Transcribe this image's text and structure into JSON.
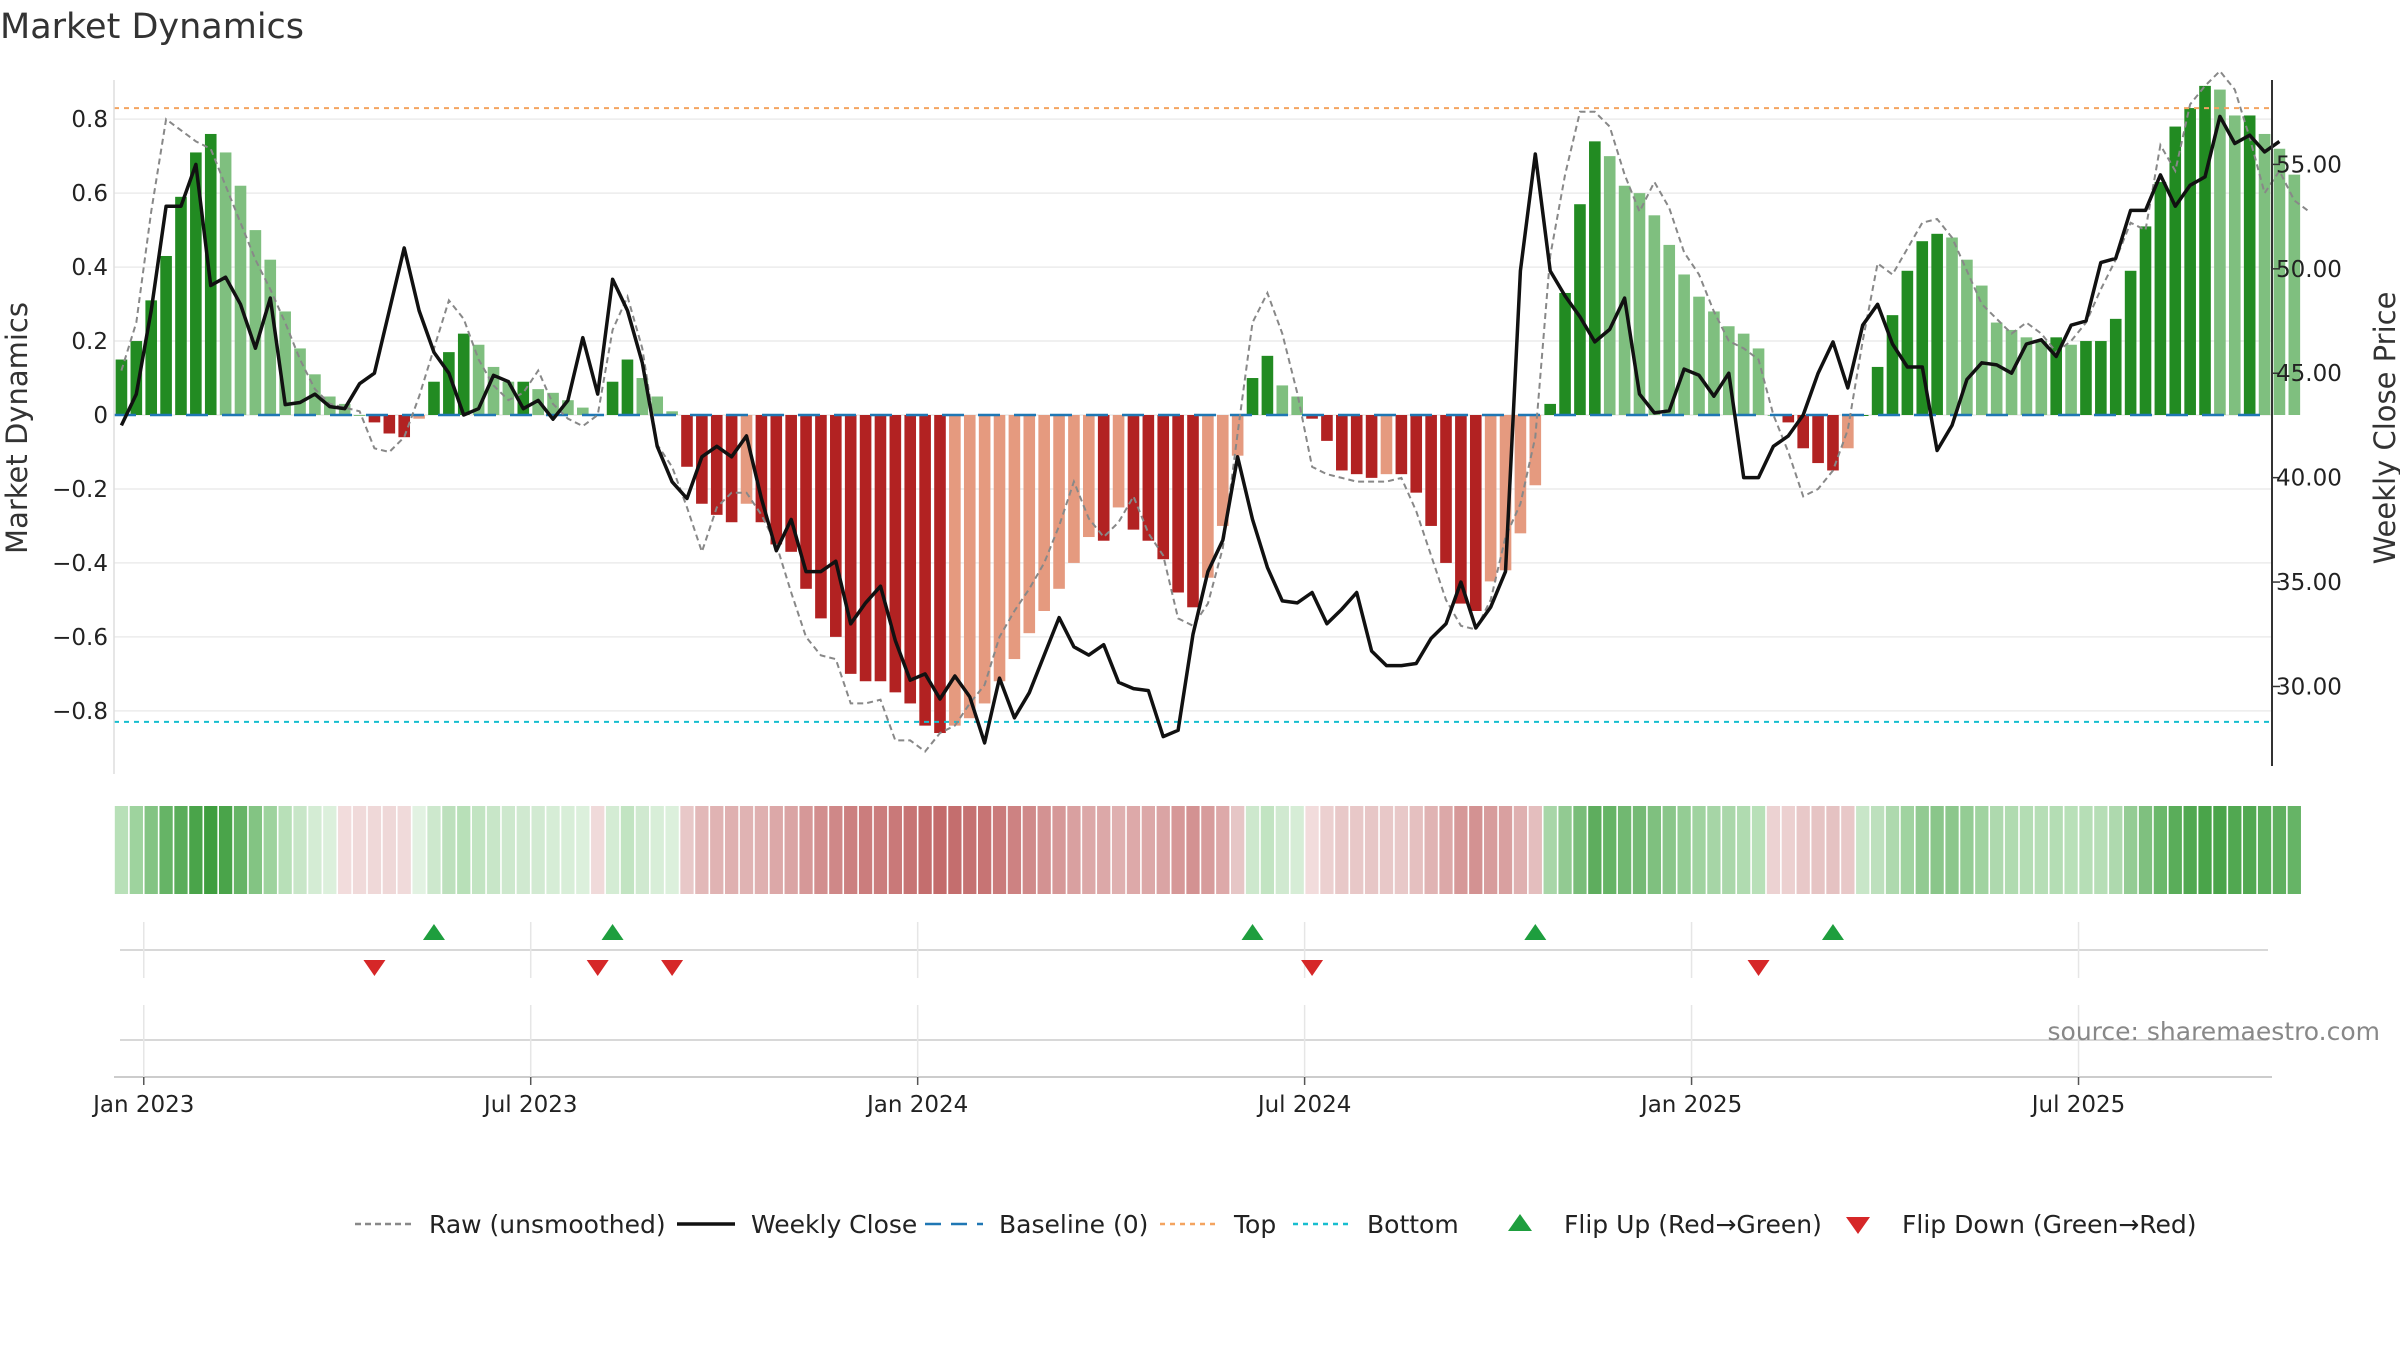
{
  "chart_data": {
    "type": "bar",
    "title": "Market Dynamics",
    "ylabel_left": "Market Dynamics",
    "ylabel_right": "Weekly Close Price",
    "ylim_left": [
      -0.96,
      0.96
    ],
    "ylim_right": [
      26.0,
      60.0
    ],
    "left_ticks": [
      {
        "v": 0.8,
        "label": "0.8"
      },
      {
        "v": 0.6,
        "label": "0.6"
      },
      {
        "v": 0.4,
        "label": "0.4"
      },
      {
        "v": 0.2,
        "label": "0.2"
      },
      {
        "v": 0,
        "label": "0"
      },
      {
        "v": -0.2,
        "label": "−0.2"
      },
      {
        "v": -0.4,
        "label": "−0.4"
      },
      {
        "v": -0.6,
        "label": "−0.6"
      },
      {
        "v": -0.8,
        "label": "−0.8"
      }
    ],
    "right_ticks": [
      {
        "v": 55,
        "label": "55.00"
      },
      {
        "v": 50,
        "label": "50.00"
      },
      {
        "v": 45,
        "label": "45.00"
      },
      {
        "v": 40,
        "label": "40.00"
      },
      {
        "v": 35,
        "label": "35.00"
      },
      {
        "v": 30,
        "label": "30.00"
      }
    ],
    "x_ticks": [
      {
        "week": 2,
        "label": "Jan 2023"
      },
      {
        "week": 28,
        "label": "Jul 2023"
      },
      {
        "week": 54,
        "label": "Jan 2024"
      },
      {
        "week": 80,
        "label": "Jul 2024"
      },
      {
        "week": 106,
        "label": "Jan 2025"
      },
      {
        "week": 132,
        "label": "Jul 2025"
      }
    ],
    "top_line": 0.83,
    "bottom_line": -0.83,
    "baseline": 0,
    "weeks": 145,
    "bars": [
      0.15,
      0.2,
      0.31,
      0.43,
      0.59,
      0.71,
      0.76,
      0.71,
      0.62,
      0.5,
      0.42,
      0.28,
      0.18,
      0.11,
      0.05,
      0.03,
      0.0,
      -0.02,
      -0.05,
      -0.06,
      -0.01,
      0.09,
      0.17,
      0.22,
      0.19,
      0.13,
      0.09,
      0.09,
      0.07,
      0.06,
      0.04,
      0.02,
      0.0,
      0.09,
      0.15,
      0.1,
      0.05,
      0.01,
      -0.14,
      -0.24,
      -0.27,
      -0.29,
      -0.24,
      -0.29,
      -0.35,
      -0.37,
      -0.47,
      -0.55,
      -0.6,
      -0.7,
      -0.72,
      -0.72,
      -0.75,
      -0.78,
      -0.84,
      -0.86,
      -0.84,
      -0.82,
      -0.78,
      -0.72,
      -0.66,
      -0.59,
      -0.53,
      -0.47,
      -0.4,
      -0.33,
      -0.34,
      -0.25,
      -0.31,
      -0.34,
      -0.39,
      -0.48,
      -0.52,
      -0.44,
      -0.3,
      -0.11,
      0.1,
      0.16,
      0.08,
      0.05,
      -0.01,
      -0.07,
      -0.15,
      -0.16,
      -0.17,
      -0.16,
      -0.16,
      -0.21,
      -0.3,
      -0.4,
      -0.51,
      -0.53,
      -0.45,
      -0.42,
      -0.32,
      -0.19,
      0.03,
      0.33,
      0.57,
      0.74,
      0.7,
      0.62,
      0.6,
      0.54,
      0.46,
      0.38,
      0.32,
      0.28,
      0.24,
      0.22,
      0.18,
      0.0,
      -0.02,
      -0.09,
      -0.13,
      -0.15,
      -0.09,
      0.0,
      0.13,
      0.27,
      0.39,
      0.47,
      0.49,
      0.48,
      0.42,
      0.35,
      0.25,
      0.23,
      0.21,
      0.2,
      0.21,
      0.19,
      0.2,
      0.2,
      0.26,
      0.39,
      0.51,
      0.63,
      0.78,
      0.83,
      0.89,
      0.88,
      0.81,
      0.81,
      0.76,
      0.72,
      0.65
    ],
    "raw": [
      0.12,
      0.25,
      0.55,
      0.8,
      0.77,
      0.74,
      0.72,
      0.62,
      0.52,
      0.42,
      0.34,
      0.25,
      0.15,
      0.07,
      0.03,
      0.02,
      0.01,
      -0.09,
      -0.1,
      -0.06,
      0.05,
      0.18,
      0.31,
      0.26,
      0.15,
      0.08,
      0.04,
      0.06,
      0.12,
      0.03,
      -0.01,
      -0.03,
      0.0,
      0.23,
      0.32,
      0.18,
      -0.08,
      -0.14,
      -0.25,
      -0.37,
      -0.25,
      -0.21,
      -0.21,
      -0.27,
      -0.35,
      -0.48,
      -0.6,
      -0.65,
      -0.66,
      -0.78,
      -0.78,
      -0.77,
      -0.88,
      -0.88,
      -0.91,
      -0.86,
      -0.84,
      -0.78,
      -0.73,
      -0.6,
      -0.53,
      -0.47,
      -0.4,
      -0.3,
      -0.18,
      -0.28,
      -0.33,
      -0.29,
      -0.22,
      -0.32,
      -0.38,
      -0.55,
      -0.57,
      -0.51,
      -0.36,
      -0.05,
      0.25,
      0.33,
      0.22,
      0.06,
      -0.14,
      -0.16,
      -0.17,
      -0.18,
      -0.18,
      -0.18,
      -0.17,
      -0.26,
      -0.38,
      -0.5,
      -0.57,
      -0.58,
      -0.5,
      -0.33,
      -0.24,
      -0.06,
      0.43,
      0.65,
      0.82,
      0.82,
      0.78,
      0.65,
      0.55,
      0.63,
      0.56,
      0.44,
      0.38,
      0.28,
      0.2,
      0.18,
      0.15,
      0.0,
      -0.1,
      -0.22,
      -0.2,
      -0.15,
      -0.04,
      0.2,
      0.41,
      0.38,
      0.45,
      0.52,
      0.53,
      0.48,
      0.39,
      0.3,
      0.26,
      0.22,
      0.25,
      0.22,
      0.17,
      0.2,
      0.25,
      0.34,
      0.42,
      0.52,
      0.5,
      0.73,
      0.66,
      0.84,
      0.89,
      0.93,
      0.88,
      0.75,
      0.6,
      0.66,
      0.58,
      0.55
    ],
    "close": [
      42.5,
      44.0,
      48.0,
      53.0,
      53.0,
      55.0,
      49.2,
      49.6,
      48.3,
      46.2,
      48.6,
      43.5,
      43.6,
      44.0,
      43.4,
      43.3,
      44.5,
      45.0,
      48.0,
      51.0,
      48.0,
      46.0,
      45.0,
      43.0,
      43.3,
      44.9,
      44.6,
      43.3,
      43.7,
      42.8,
      43.7,
      46.7,
      44.0,
      49.5,
      48.0,
      45.5,
      41.5,
      39.8,
      39.0,
      41.0,
      41.5,
      41.0,
      42.0,
      39.0,
      36.5,
      38.0,
      35.5,
      35.5,
      36.0,
      33.0,
      34.0,
      34.8,
      32.2,
      30.3,
      30.6,
      29.4,
      30.5,
      29.5,
      27.3,
      30.4,
      28.5,
      29.7,
      31.5,
      33.3,
      31.9,
      31.5,
      32.0,
      30.2,
      29.9,
      29.8,
      27.6,
      27.9,
      32.5,
      35.5,
      37.0,
      41.0,
      38.0,
      35.7,
      34.1,
      34.0,
      34.5,
      33.0,
      33.7,
      34.5,
      31.7,
      31.0,
      31.0,
      31.1,
      32.3,
      33.0,
      35.0,
      32.8,
      33.8,
      35.5,
      49.9,
      55.5,
      49.9,
      48.7,
      47.7,
      46.5,
      47.1,
      48.6,
      44.0,
      43.1,
      43.2,
      45.2,
      44.9,
      43.9,
      45.0,
      40.0,
      40.0,
      41.5,
      42.0,
      43.0,
      45.0,
      46.5,
      44.3,
      47.3,
      48.3,
      46.4,
      45.3,
      45.3,
      41.3,
      42.5,
      44.7,
      45.5,
      45.4,
      45.0,
      46.4,
      46.6,
      45.8,
      47.3,
      47.5,
      50.3,
      50.5,
      52.8,
      52.8,
      54.5,
      53.0,
      54.0,
      54.4,
      57.3,
      56.0,
      56.4,
      55.6,
      56.1
    ],
    "strip_colors": [
      "#b8e0b8",
      "#9ed39e",
      "#83c483",
      "#66b466",
      "#5aad5a",
      "#4aa44a",
      "#3f9e3f",
      "#4aa44a",
      "#66b466",
      "#83c483",
      "#9ed39e",
      "#b8e0b8",
      "#c8e6c8",
      "#d4ecd4",
      "#dcf0dc",
      "#f2dcdc",
      "#f0dada",
      "#efd8d8",
      "#efd8d8",
      "#f0dada",
      "#e2f2e2",
      "#cde8cd",
      "#bde0bd",
      "#b8e0b8",
      "#c2e4c2",
      "#c8e6c8",
      "#cde8cd",
      "#d0e9d0",
      "#d2ead2",
      "#d6edd6",
      "#d8eed8",
      "#dcf0dc",
      "#f0dada",
      "#d4ecd4",
      "#c2e4c2",
      "#d0e9d0",
      "#d8eed8",
      "#dcf0dc",
      "#e8c8c8",
      "#e2b8b8",
      "#e0b3b3",
      "#dfb0b0",
      "#e0b3b3",
      "#dfb0b0",
      "#dca8a8",
      "#daa4a4",
      "#d69898",
      "#d28e8e",
      "#cf8888",
      "#cc8080",
      "#cb7d7d",
      "#cb7d7d",
      "#c97979",
      "#c77474",
      "#c46e6e",
      "#c36b6b",
      "#c46e6e",
      "#c57272",
      "#c77474",
      "#ca7b7b",
      "#cd8282",
      "#d08a8a",
      "#d39292",
      "#d69898",
      "#d9a0a0",
      "#dca8a8",
      "#dca8a8",
      "#dfb0b0",
      "#dda9a9",
      "#dca8a8",
      "#daa4a4",
      "#d69898",
      "#d39292",
      "#d79c9c",
      "#dda9a9",
      "#e6c6c6",
      "#cde8cd",
      "#c2e4c2",
      "#d0e9d0",
      "#d6edd6",
      "#f2dcdc",
      "#ecd0d0",
      "#e8c8c8",
      "#e8c8c8",
      "#e7c6c6",
      "#e8c8c8",
      "#e8c8c8",
      "#e5c0c0",
      "#e0b3b3",
      "#dca8a8",
      "#d69898",
      "#d39292",
      "#d79c9c",
      "#d9a0a0",
      "#dfb0b0",
      "#e4bebe",
      "#a8d6a8",
      "#92ca92",
      "#79bd79",
      "#5ead5e",
      "#66b466",
      "#71b871",
      "#75ba75",
      "#7fc07f",
      "#8ac68a",
      "#94cc94",
      "#a0d3a0",
      "#a6d5a6",
      "#aad7aa",
      "#b0dbb0",
      "#b8e0b8",
      "#ecd2d2",
      "#ecd0d0",
      "#e8c8c8",
      "#e6c4c4",
      "#e5c2c2",
      "#e8c8c8",
      "#c8e6c8",
      "#bde0bd",
      "#aed9ae",
      "#a0d3a0",
      "#92ca92",
      "#8ac68a",
      "#8cc78c",
      "#94cc94",
      "#a0d3a0",
      "#aed9ae",
      "#b0dbb0",
      "#b4ddb4",
      "#b6deb6",
      "#b4ddb4",
      "#b8e0b8",
      "#b6deb6",
      "#b6deb6",
      "#aed9ae",
      "#94cc94",
      "#7fc07f",
      "#6bb86b",
      "#5aad5a",
      "#51a851",
      "#4aa44a",
      "#4aa44a",
      "#51a851",
      "#51a851",
      "#5aad5a",
      "#5fb05f",
      "#66b466"
    ],
    "flip_up_weeks": [
      21,
      33,
      76,
      95,
      115
    ],
    "flip_down_weeks": [
      17,
      32,
      37,
      80,
      110
    ],
    "colors": {
      "strong_green": "#228b22",
      "light_green": "#7fbf7f",
      "strong_red": "#b22222",
      "light_red": "#e59a7f",
      "close_line": "#111111",
      "raw_line": "#888888",
      "baseline": "#1f77b4",
      "top_line": "#f4a460",
      "bottom_line": "#17becf",
      "flip_up": "#1e9e3e",
      "flip_down": "#d62728"
    },
    "legend": [
      {
        "key": "raw",
        "label": "Raw (unsmoothed)"
      },
      {
        "key": "close",
        "label": "Weekly Close"
      },
      {
        "key": "baseline",
        "label": "Baseline (0)"
      },
      {
        "key": "top",
        "label": "Top"
      },
      {
        "key": "bottom",
        "label": "Bottom"
      },
      {
        "key": "flip_up",
        "label": "Flip Up (Red→Green)"
      },
      {
        "key": "flip_down",
        "label": "Flip Down (Green→Red)"
      }
    ],
    "source": "source: sharemaestro.com"
  }
}
